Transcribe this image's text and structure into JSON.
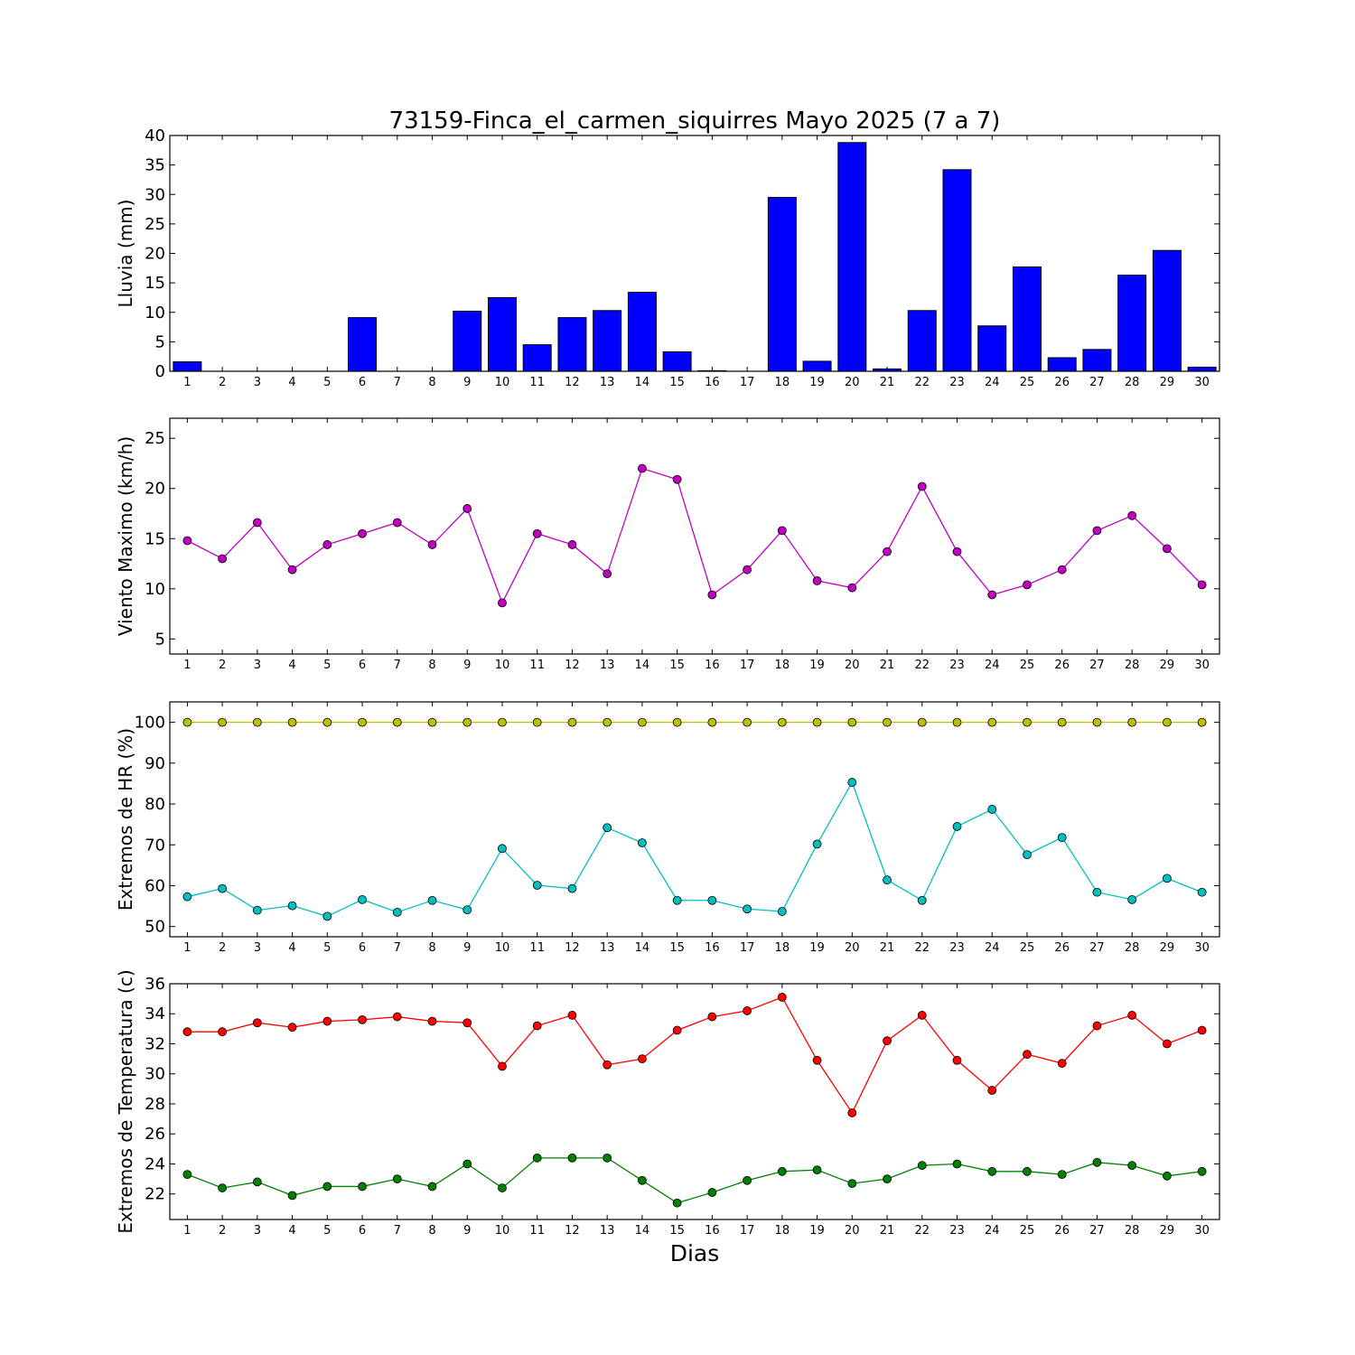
{
  "figure": {
    "title": "73159-Finca_el_carmen_siquirres Mayo 2025  (7 a 7)",
    "xlabel": "Dias"
  },
  "chart_data": [
    {
      "type": "bar",
      "ylabel": "Lluvia (mm)",
      "categories": [
        1,
        2,
        3,
        4,
        5,
        6,
        7,
        8,
        9,
        10,
        11,
        12,
        13,
        14,
        15,
        16,
        17,
        18,
        19,
        20,
        21,
        22,
        23,
        24,
        25,
        26,
        27,
        28,
        29,
        30
      ],
      "values": [
        1.6,
        0,
        0,
        0,
        0,
        9.1,
        0,
        0,
        10.2,
        12.5,
        4.5,
        9.1,
        10.3,
        13.4,
        3.3,
        0.1,
        0,
        29.5,
        1.7,
        38.8,
        0.4,
        10.3,
        34.2,
        7.7,
        17.7,
        2.3,
        3.7,
        16.3,
        20.5,
        0.7
      ],
      "ylim": [
        0,
        40
      ],
      "yticks": [
        0,
        5,
        10,
        15,
        20,
        25,
        30,
        35,
        40
      ],
      "color": "#0000ff"
    },
    {
      "type": "line",
      "ylabel": "Viento Maximo (km/h)",
      "categories": [
        1,
        2,
        3,
        4,
        5,
        6,
        7,
        8,
        9,
        10,
        11,
        12,
        13,
        14,
        15,
        16,
        17,
        18,
        19,
        20,
        21,
        22,
        23,
        24,
        25,
        26,
        27,
        28,
        29,
        30
      ],
      "series": [
        {
          "values": [
            14.8,
            13.0,
            16.6,
            11.9,
            14.4,
            15.5,
            16.6,
            14.4,
            18.0,
            8.6,
            15.5,
            14.4,
            11.5,
            22.0,
            20.9,
            9.4,
            11.9,
            15.8,
            10.8,
            10.1,
            13.7,
            20.2,
            13.7,
            9.4,
            10.4,
            11.9,
            15.8,
            17.3,
            14.0,
            10.4
          ],
          "color": "#bf00bf"
        }
      ],
      "ylim": [
        3.5,
        27
      ],
      "yticks": [
        5,
        10,
        15,
        20,
        25
      ]
    },
    {
      "type": "line",
      "ylabel": "Extremos de HR (%)",
      "categories": [
        1,
        2,
        3,
        4,
        5,
        6,
        7,
        8,
        9,
        10,
        11,
        12,
        13,
        14,
        15,
        16,
        17,
        18,
        19,
        20,
        21,
        22,
        23,
        24,
        25,
        26,
        27,
        28,
        29,
        30
      ],
      "series": [
        {
          "values": [
            100,
            100,
            100,
            100,
            100,
            100,
            100,
            100,
            100,
            100,
            100,
            100,
            100,
            100,
            100,
            100,
            100,
            100,
            100,
            100,
            100,
            100,
            100,
            100,
            100,
            100,
            100,
            100,
            100,
            100
          ],
          "color": "#bfbf00"
        },
        {
          "values": [
            57.3,
            59.3,
            54.0,
            55.1,
            52.5,
            56.6,
            53.5,
            56.4,
            54.1,
            69.1,
            60.1,
            59.3,
            74.2,
            70.5,
            56.4,
            56.4,
            54.3,
            53.7,
            70.2,
            85.3,
            61.4,
            56.4,
            74.5,
            78.7,
            67.6,
            71.8,
            58.4,
            56.6,
            61.8,
            58.4
          ],
          "color": "#00bfbf"
        }
      ],
      "ylim": [
        47.5,
        105
      ],
      "yticks": [
        50,
        60,
        70,
        80,
        90,
        100
      ]
    },
    {
      "type": "line",
      "ylabel": "Extremos de Temperatura (c)",
      "categories": [
        1,
        2,
        3,
        4,
        5,
        6,
        7,
        8,
        9,
        10,
        11,
        12,
        13,
        14,
        15,
        16,
        17,
        18,
        19,
        20,
        21,
        22,
        23,
        24,
        25,
        26,
        27,
        28,
        29,
        30
      ],
      "series": [
        {
          "values": [
            32.8,
            32.8,
            33.4,
            33.1,
            33.5,
            33.6,
            33.8,
            33.5,
            33.4,
            30.5,
            33.2,
            33.9,
            30.6,
            31.0,
            32.9,
            33.8,
            34.2,
            35.1,
            30.9,
            27.4,
            32.2,
            33.9,
            30.9,
            28.9,
            31.3,
            30.7,
            33.2,
            33.9,
            32.0,
            32.9
          ],
          "color": "#ff0000"
        },
        {
          "values": [
            23.3,
            22.4,
            22.8,
            21.9,
            22.5,
            22.5,
            23.0,
            22.5,
            24.0,
            22.4,
            24.4,
            24.4,
            24.4,
            22.9,
            21.4,
            22.1,
            22.9,
            23.5,
            23.6,
            22.7,
            23.0,
            23.9,
            24.0,
            23.5,
            23.5,
            23.3,
            24.1,
            23.9,
            23.2,
            23.5
          ],
          "color": "#008000"
        }
      ],
      "ylim": [
        20.3,
        36
      ],
      "yticks": [
        22,
        24,
        26,
        28,
        30,
        32,
        34,
        36
      ]
    }
  ]
}
